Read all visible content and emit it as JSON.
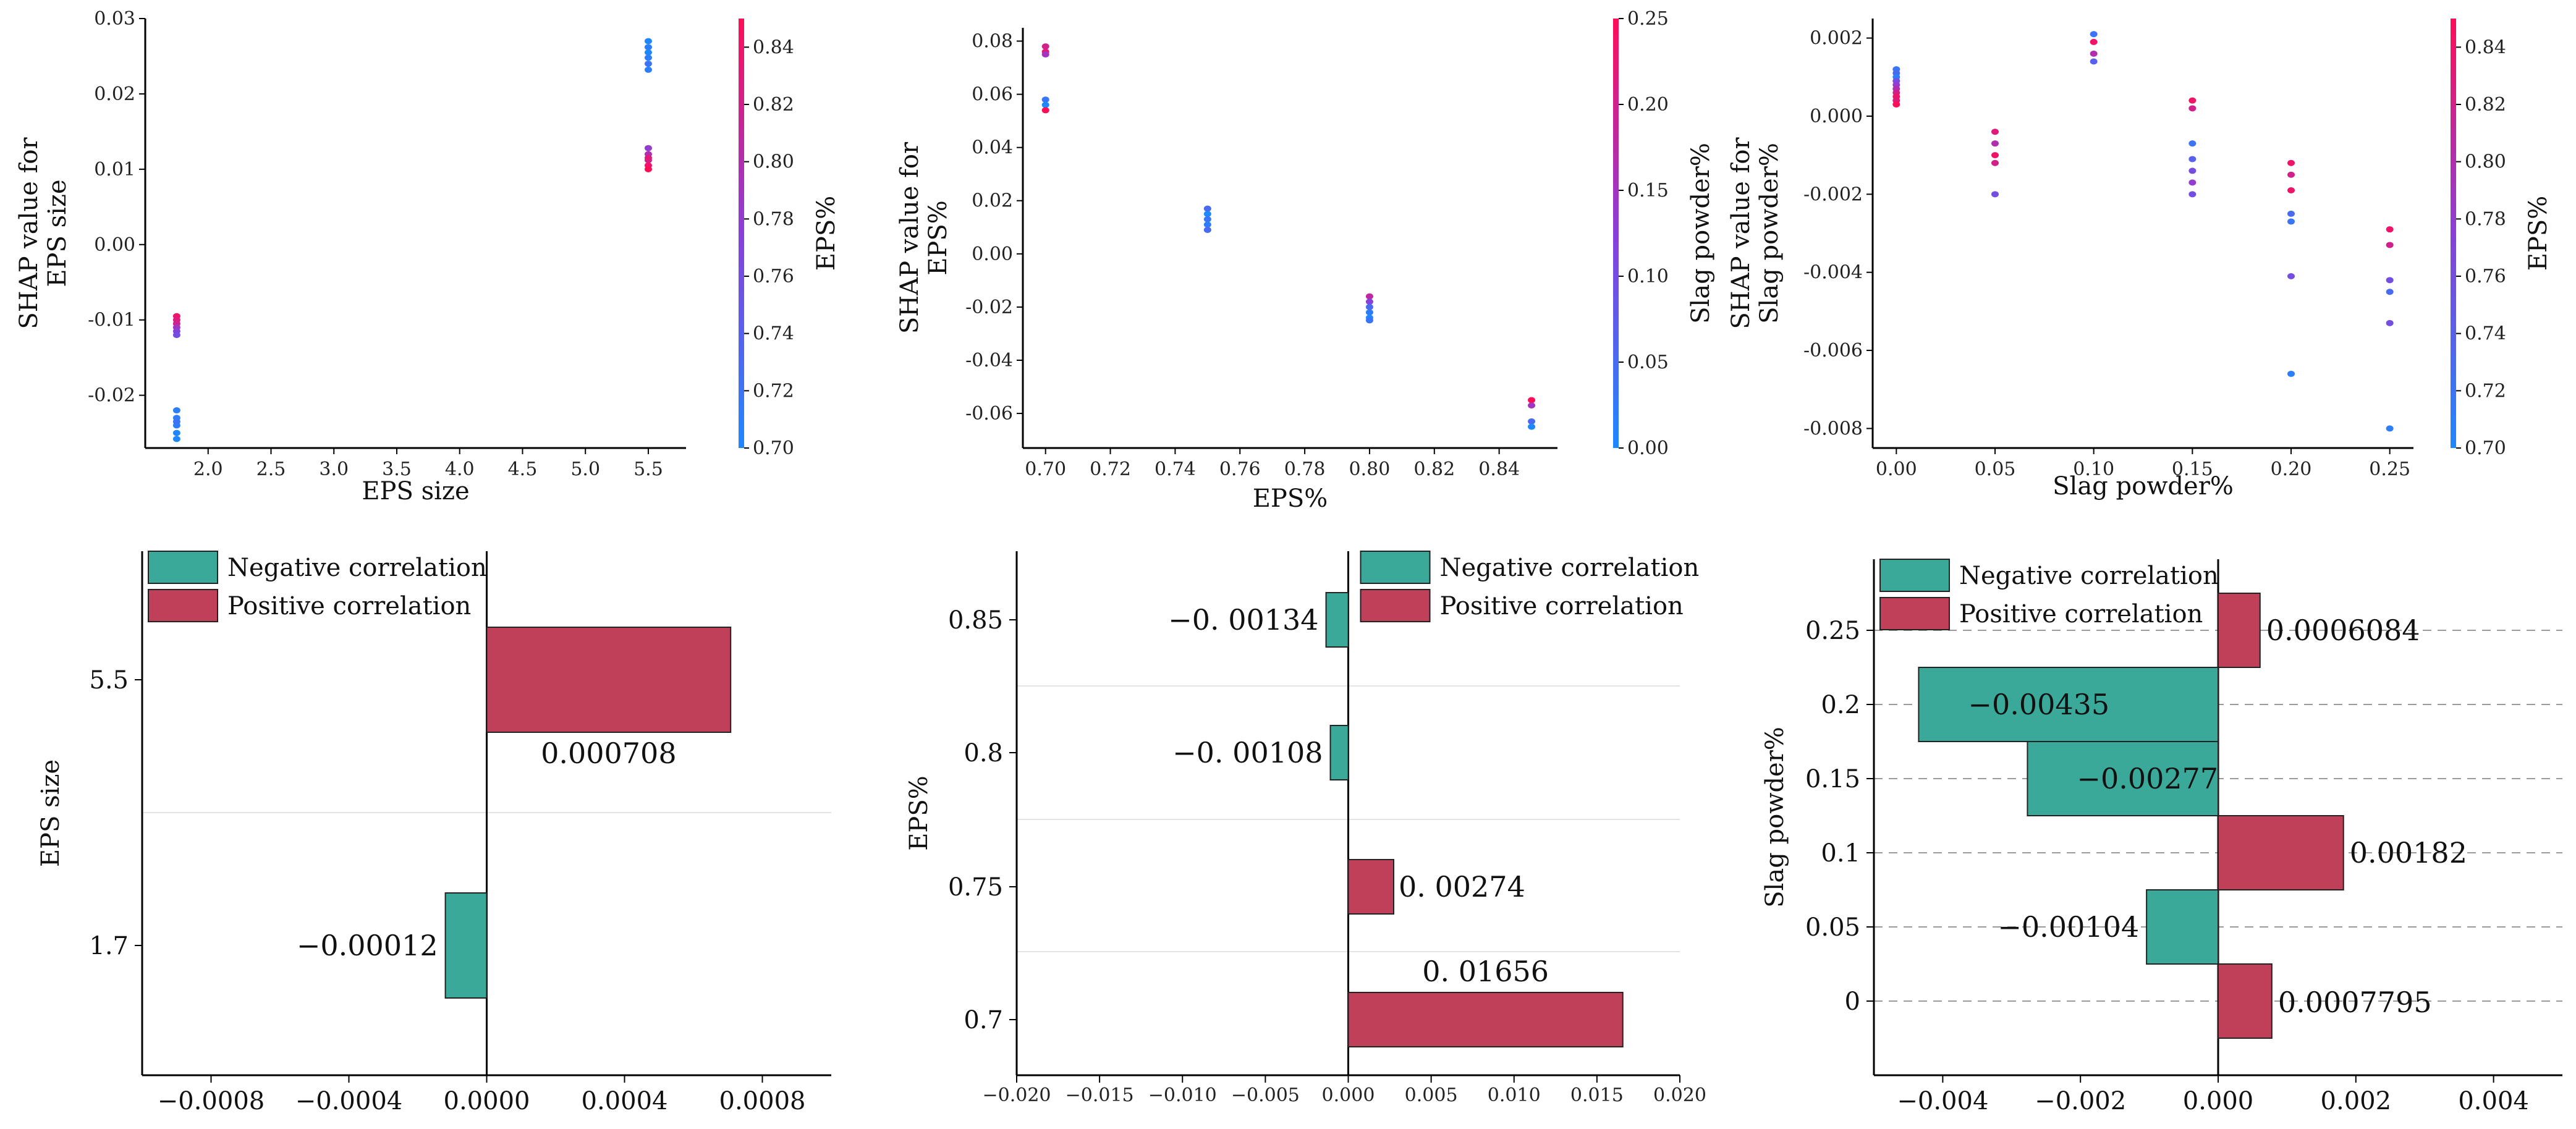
{
  "colors": {
    "negative": "#3aa99a",
    "positive": "#c0405a",
    "cmap_low": "#1e88ff",
    "cmap_mid": "#8a3fd9",
    "cmap_high": "#ff0d57"
  },
  "chart_data": [
    {
      "id": "shap-eps-size",
      "type": "scatter",
      "xlabel": "EPS size",
      "ylabel": "SHAP value for\nEPS size",
      "colorbar_label": "EPS%",
      "xlim": [
        1.5,
        5.8
      ],
      "ylim": [
        -0.027,
        0.03
      ],
      "xticks": [
        "2.0",
        "2.5",
        "3.0",
        "3.5",
        "4.0",
        "4.5",
        "5.0",
        "5.5"
      ],
      "yticks": [
        "-0.02",
        "-0.01",
        "0.00",
        "0.01",
        "0.02",
        "0.03"
      ],
      "clim": [
        0.7,
        0.85
      ],
      "cticks": [
        "0.70",
        "0.72",
        "0.74",
        "0.76",
        "0.78",
        "0.80",
        "0.82",
        "0.84"
      ],
      "points": [
        [
          1.75,
          -0.0095,
          0.84
        ],
        [
          1.75,
          -0.01,
          0.83
        ],
        [
          1.75,
          -0.0105,
          0.82
        ],
        [
          1.75,
          -0.011,
          0.79
        ],
        [
          1.75,
          -0.0115,
          0.77
        ],
        [
          1.75,
          -0.012,
          0.76
        ],
        [
          1.75,
          -0.022,
          0.71
        ],
        [
          1.75,
          -0.023,
          0.71
        ],
        [
          1.75,
          -0.024,
          0.71
        ],
        [
          1.75,
          -0.025,
          0.7
        ],
        [
          1.75,
          -0.0258,
          0.7
        ],
        [
          1.75,
          -0.0235,
          0.72
        ],
        [
          5.5,
          0.027,
          0.7
        ],
        [
          5.5,
          0.0262,
          0.71
        ],
        [
          5.5,
          0.0255,
          0.7
        ],
        [
          5.5,
          0.0248,
          0.71
        ],
        [
          5.5,
          0.024,
          0.72
        ],
        [
          5.5,
          0.0232,
          0.71
        ],
        [
          5.5,
          0.0128,
          0.78
        ],
        [
          5.5,
          0.012,
          0.8
        ],
        [
          5.5,
          0.0112,
          0.82
        ],
        [
          5.5,
          0.0105,
          0.84
        ],
        [
          5.5,
          0.01,
          0.85
        ],
        [
          5.5,
          0.0115,
          0.83
        ]
      ]
    },
    {
      "id": "shap-eps-pct",
      "type": "scatter",
      "xlabel": "EPS%",
      "ylabel": "SHAP value for\nEPS%",
      "colorbar_label": "Slag powder%",
      "xlim": [
        0.693,
        0.858
      ],
      "ylim": [
        -0.073,
        0.085
      ],
      "xticks": [
        "0.70",
        "0.72",
        "0.74",
        "0.76",
        "0.78",
        "0.80",
        "0.82",
        "0.84"
      ],
      "yticks": [
        "-0.06",
        "-0.04",
        "-0.02",
        "0.00",
        "0.02",
        "0.04",
        "0.06",
        "0.08"
      ],
      "clim": [
        0.0,
        0.25
      ],
      "cticks": [
        "0.00",
        "0.05",
        "0.10",
        "0.15",
        "0.20",
        "0.25"
      ],
      "points": [
        [
          0.7,
          0.078,
          0.2
        ],
        [
          0.7,
          0.076,
          0.22
        ],
        [
          0.7,
          0.075,
          0.15
        ],
        [
          0.7,
          0.058,
          0.03
        ],
        [
          0.7,
          0.056,
          0.0
        ],
        [
          0.7,
          0.054,
          0.25
        ],
        [
          0.75,
          0.017,
          0.05
        ],
        [
          0.75,
          0.015,
          0.0
        ],
        [
          0.75,
          0.013,
          0.03
        ],
        [
          0.75,
          0.011,
          0.02
        ],
        [
          0.75,
          0.009,
          0.05
        ],
        [
          0.8,
          -0.016,
          0.18
        ],
        [
          0.8,
          -0.018,
          0.12
        ],
        [
          0.8,
          -0.02,
          0.05
        ],
        [
          0.8,
          -0.022,
          0.02
        ],
        [
          0.8,
          -0.024,
          0.0
        ],
        [
          0.8,
          -0.025,
          0.03
        ],
        [
          0.85,
          -0.055,
          0.25
        ],
        [
          0.85,
          -0.057,
          0.15
        ],
        [
          0.85,
          -0.063,
          0.05
        ],
        [
          0.85,
          -0.065,
          0.0
        ]
      ]
    },
    {
      "id": "shap-slag",
      "type": "scatter",
      "xlabel": "Slag powder%",
      "ylabel": "SHAP value for\nSlag powder%",
      "colorbar_label": "EPS%",
      "xlim": [
        -0.012,
        0.262
      ],
      "ylim": [
        -0.0085,
        0.0025
      ],
      "xticks": [
        "0.00",
        "0.05",
        "0.10",
        "0.15",
        "0.20",
        "0.25"
      ],
      "yticks": [
        "-0.008",
        "-0.006",
        "-0.004",
        "-0.002",
        "0.000",
        "0.002"
      ],
      "clim": [
        0.7,
        0.85
      ],
      "cticks": [
        "0.70",
        "0.72",
        "0.74",
        "0.76",
        "0.78",
        "0.80",
        "0.82",
        "0.84"
      ],
      "points": [
        [
          0.0,
          0.0012,
          0.72
        ],
        [
          0.0,
          0.0011,
          0.73
        ],
        [
          0.0,
          0.001,
          0.71
        ],
        [
          0.0,
          0.0009,
          0.76
        ],
        [
          0.0,
          0.0008,
          0.78
        ],
        [
          0.0,
          0.0007,
          0.8
        ],
        [
          0.0,
          0.0006,
          0.82
        ],
        [
          0.0,
          0.0005,
          0.84
        ],
        [
          0.0,
          0.0004,
          0.83
        ],
        [
          0.0,
          0.0003,
          0.85
        ],
        [
          0.05,
          -0.0004,
          0.83
        ],
        [
          0.05,
          -0.0007,
          0.8
        ],
        [
          0.05,
          -0.001,
          0.84
        ],
        [
          0.05,
          -0.0012,
          0.82
        ],
        [
          0.05,
          -0.002,
          0.76
        ],
        [
          0.1,
          0.0021,
          0.72
        ],
        [
          0.1,
          0.0019,
          0.84
        ],
        [
          0.1,
          0.0016,
          0.8
        ],
        [
          0.1,
          0.0014,
          0.74
        ],
        [
          0.15,
          0.0004,
          0.84
        ],
        [
          0.15,
          0.0002,
          0.82
        ],
        [
          0.15,
          -0.0007,
          0.72
        ],
        [
          0.15,
          -0.0011,
          0.74
        ],
        [
          0.15,
          -0.0014,
          0.76
        ],
        [
          0.15,
          -0.0017,
          0.78
        ],
        [
          0.15,
          -0.002,
          0.76
        ],
        [
          0.2,
          -0.0012,
          0.84
        ],
        [
          0.2,
          -0.0015,
          0.82
        ],
        [
          0.2,
          -0.0019,
          0.84
        ],
        [
          0.2,
          -0.0025,
          0.73
        ],
        [
          0.2,
          -0.0027,
          0.72
        ],
        [
          0.2,
          -0.0041,
          0.76
        ],
        [
          0.2,
          -0.0066,
          0.71
        ],
        [
          0.25,
          -0.0029,
          0.84
        ],
        [
          0.25,
          -0.0033,
          0.82
        ],
        [
          0.25,
          -0.0042,
          0.76
        ],
        [
          0.25,
          -0.0045,
          0.73
        ],
        [
          0.25,
          -0.0053,
          0.76
        ],
        [
          0.25,
          -0.008,
          0.71
        ]
      ]
    },
    {
      "id": "bar-eps-size",
      "type": "bar",
      "orientation": "horizontal",
      "ylabel": "EPS size",
      "xlim": [
        -0.001,
        0.001
      ],
      "xticks": [
        "−0.0008",
        "−0.0004",
        "0.0000",
        "0.0004",
        "0.0008"
      ],
      "xtick_values": [
        -0.0008,
        -0.0004,
        0.0,
        0.0004,
        0.0008
      ],
      "categories": [
        "1.7",
        "5.5"
      ],
      "values": [
        -0.00012,
        0.000708
      ],
      "labels": [
        "−0.00012",
        "0.000708"
      ],
      "legend": [
        "Negative correlation",
        "Positive correlation"
      ],
      "legend_loc": "top-left",
      "grid": "separators"
    },
    {
      "id": "bar-eps-pct",
      "type": "bar",
      "orientation": "horizontal",
      "ylabel": "EPS%",
      "xlim": [
        -0.02,
        0.02
      ],
      "xticks": [
        "−0.020",
        "−0.015",
        "−0.010",
        "−0.005",
        "0.000",
        "0.005",
        "0.010",
        "0.015",
        "0.020"
      ],
      "xtick_values": [
        -0.02,
        -0.015,
        -0.01,
        -0.005,
        0.0,
        0.005,
        0.01,
        0.015,
        0.02
      ],
      "categories": [
        "0.7",
        "0.75",
        "0.8",
        "0.85"
      ],
      "values": [
        0.01656,
        0.00274,
        -0.00108,
        -0.00134
      ],
      "labels": [
        "0. 01656",
        "0. 00274",
        "−0. 00108",
        "−0. 00134"
      ],
      "legend": [
        "Negative correlation",
        "Positive correlation"
      ],
      "legend_loc": "top-right",
      "grid": "separators"
    },
    {
      "id": "bar-slag",
      "type": "bar",
      "orientation": "horizontal",
      "ylabel": "Slag powder%",
      "xlim": [
        -0.005,
        0.005
      ],
      "xticks": [
        "−0.004",
        "−0.002",
        "0.000",
        "0.002",
        "0.004"
      ],
      "xtick_values": [
        -0.004,
        -0.002,
        0.0,
        0.002,
        0.004
      ],
      "categories": [
        "0",
        "0.05",
        "0.1",
        "0.15",
        "0.2",
        "0.25"
      ],
      "values": [
        0.0007795,
        -0.00104,
        0.00182,
        -0.00277,
        -0.00435,
        0.0006084
      ],
      "labels": [
        "0.0007795",
        "−0.00104",
        "0.00182",
        "−0.00277",
        "−0.00435",
        "0.0006084"
      ],
      "legend": [
        "Negative correlation",
        "Positive correlation"
      ],
      "legend_loc": "top-left",
      "grid": "dashed"
    }
  ]
}
